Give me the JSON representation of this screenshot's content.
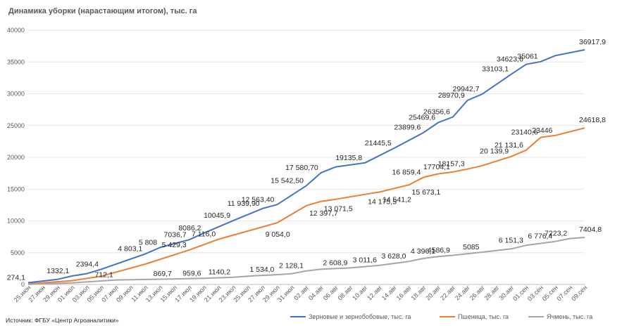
{
  "chart_data": {
    "type": "line",
    "title": "Динамика уборки (нарастающим итогом), тыс. га",
    "source": "Источник: ФГБУ «Центр Агроаналитики»",
    "ylim": [
      0,
      40000
    ],
    "yticks": [
      0,
      5000,
      10000,
      15000,
      20000,
      25000,
      30000,
      35000,
      40000
    ],
    "grid": true,
    "legend_position": "bottom",
    "x_labels": [
      "25.июн",
      "27.июн",
      "29.июн",
      "01.июл",
      "03.июл",
      "05.июл",
      "07.июл",
      "09.июл",
      "11.июл",
      "13.июл",
      "15.июл",
      "17.июл",
      "19.июл",
      "21.июл",
      "23.июл",
      "25.июл",
      "27.июл",
      "29.июл",
      "31.июл",
      "02.авг",
      "04.авг",
      "06.авг",
      "08.авг",
      "10.авг",
      "12.авг",
      "14.авг",
      "16.авг",
      "18.авг",
      "20.авг",
      "22.авг",
      "24.авг",
      "26.авг",
      "28.авг",
      "30.авг",
      "01.сен",
      "03.сен",
      "05.сен",
      "07.сен",
      "09.сен"
    ],
    "x_count": 77,
    "series": [
      {
        "name": "Зерновые и зернобобовые, тыс. га",
        "color": "#4472C4",
        "points": [
          [
            0,
            274.1
          ],
          [
            4,
            800
          ],
          [
            6,
            1332.1
          ],
          [
            8,
            1700
          ],
          [
            10,
            2394.4
          ],
          [
            16,
            4803.1
          ],
          [
            18,
            5808
          ],
          [
            22,
            7036.7
          ],
          [
            24,
            8086.2
          ],
          [
            28,
            10045.9
          ],
          [
            32,
            11939.9
          ],
          [
            34,
            12563.4
          ],
          [
            38,
            15542.5
          ],
          [
            40,
            17580.7
          ],
          [
            42,
            18500
          ],
          [
            46,
            19135.8
          ],
          [
            50,
            21445.5
          ],
          [
            54,
            23899.6
          ],
          [
            56,
            25469.6
          ],
          [
            58,
            26356.6
          ],
          [
            60,
            28970.9
          ],
          [
            62,
            29942.7
          ],
          [
            66,
            33103.1
          ],
          [
            68,
            34623.6
          ],
          [
            70,
            35061
          ],
          [
            72,
            36000
          ],
          [
            76,
            36917.9
          ]
        ],
        "labels": [
          {
            "x": 0,
            "y": 274.1,
            "text": "274,1"
          },
          {
            "x": 6,
            "y": 1332.1,
            "text": "1332,1"
          },
          {
            "x": 10,
            "y": 2394.4,
            "text": "2394,4"
          },
          {
            "x": 16,
            "y": 4803.1,
            "text": "4 803,1"
          },
          {
            "x": 18,
            "y": 5808,
            "text": "5 808"
          },
          {
            "x": 22,
            "y": 7036.7,
            "text": "7036,7"
          },
          {
            "x": 24,
            "y": 8086.2,
            "text": "8086,2"
          },
          {
            "x": 28,
            "y": 10045.9,
            "text": "10045,9"
          },
          {
            "x": 32,
            "y": 11939.9,
            "text": "11 939,90"
          },
          {
            "x": 34,
            "y": 12563.4,
            "text": "12 563,40"
          },
          {
            "x": 38,
            "y": 15542.5,
            "text": "15 542,50"
          },
          {
            "x": 40,
            "y": 17580.7,
            "text": "17 580,70"
          },
          {
            "x": 46,
            "y": 19135.8,
            "text": "19135,8"
          },
          {
            "x": 50,
            "y": 21445.5,
            "text": "21445,5"
          },
          {
            "x": 54,
            "y": 23899.6,
            "text": "23899,6"
          },
          {
            "x": 56,
            "y": 25469.6,
            "text": "25469,6"
          },
          {
            "x": 58,
            "y": 26356.6,
            "text": "26356,6"
          },
          {
            "x": 60,
            "y": 28970.9,
            "text": "28970,9"
          },
          {
            "x": 62,
            "y": 29942.7,
            "text": "29942,7"
          },
          {
            "x": 66,
            "y": 33103.1,
            "text": "33103,1"
          },
          {
            "x": 68,
            "y": 34623.6,
            "text": "34623,6"
          },
          {
            "x": 70,
            "y": 35061,
            "text": "35061"
          },
          {
            "x": 76,
            "y": 36917.9,
            "text": "36917,9"
          }
        ]
      },
      {
        "name": "Пшеница, тыс. га",
        "color": "#ED7D31",
        "points": [
          [
            0,
            100
          ],
          [
            6,
            600
          ],
          [
            10,
            1300
          ],
          [
            16,
            3200
          ],
          [
            22,
            5429.3
          ],
          [
            26,
            7116
          ],
          [
            32,
            9054
          ],
          [
            34,
            9700
          ],
          [
            38,
            12397.7
          ],
          [
            40,
            13071.5
          ],
          [
            42,
            13400
          ],
          [
            46,
            14175.5
          ],
          [
            48,
            14541.2
          ],
          [
            52,
            15673.1
          ],
          [
            54,
            16859.4
          ],
          [
            56,
            17400
          ],
          [
            58,
            17704.1
          ],
          [
            60,
            18157.3
          ],
          [
            62,
            18700
          ],
          [
            66,
            20139.9
          ],
          [
            68,
            21131.6
          ],
          [
            70,
            23140.6
          ],
          [
            72,
            23446
          ],
          [
            76,
            24618.8
          ]
        ],
        "labels": [
          {
            "x": 22,
            "y": 5429.3,
            "text": "5 429,3"
          },
          {
            "x": 26,
            "y": 7116,
            "text": "7 116,0"
          },
          {
            "x": 32,
            "y": 9054,
            "text": "9 054,0"
          },
          {
            "x": 38,
            "y": 12397.7,
            "text": "12 397,7"
          },
          {
            "x": 40,
            "y": 13071.5,
            "text": "13 071,5"
          },
          {
            "x": 46,
            "y": 14175.5,
            "text": "14 175,5"
          },
          {
            "x": 48,
            "y": 14541.2,
            "text": "14 541,2"
          },
          {
            "x": 52,
            "y": 15673.1,
            "text": "15 673,1"
          },
          {
            "x": 54,
            "y": 16859.4,
            "text": "16 859,4"
          },
          {
            "x": 58,
            "y": 17704.1,
            "text": "17704,1"
          },
          {
            "x": 60,
            "y": 18157.3,
            "text": "18157,3"
          },
          {
            "x": 66,
            "y": 20139.9,
            "text": "20 139,9"
          },
          {
            "x": 68,
            "y": 21131.6,
            "text": "21 131,6"
          },
          {
            "x": 70,
            "y": 23140.6,
            "text": "23140,6"
          },
          {
            "x": 72,
            "y": 23446,
            "text": "23446"
          },
          {
            "x": 76,
            "y": 24618.8,
            "text": "24618,8"
          }
        ]
      },
      {
        "name": "Ячмень, тыс. га",
        "color": "#A5A5A5",
        "points": [
          [
            0,
            30
          ],
          [
            6,
            250
          ],
          [
            12,
            712.1
          ],
          [
            20,
            869.7
          ],
          [
            24,
            959.6
          ],
          [
            28,
            1140.2
          ],
          [
            30,
            1300
          ],
          [
            34,
            1534
          ],
          [
            36,
            1700
          ],
          [
            38,
            2128.1
          ],
          [
            40,
            2400
          ],
          [
            44,
            2608.9
          ],
          [
            48,
            3011.6
          ],
          [
            52,
            3628
          ],
          [
            54,
            4100
          ],
          [
            56,
            4396.1
          ],
          [
            58,
            4586.9
          ],
          [
            62,
            5085
          ],
          [
            66,
            5600
          ],
          [
            68,
            6151.3
          ],
          [
            72,
            6776.4
          ],
          [
            74,
            7223.2
          ],
          [
            76,
            7404.8
          ]
        ],
        "labels": [
          {
            "x": 12,
            "y": 712.1,
            "text": "712,1"
          },
          {
            "x": 20,
            "y": 869.7,
            "text": "869,7"
          },
          {
            "x": 24,
            "y": 959.6,
            "text": "959,6"
          },
          {
            "x": 28,
            "y": 1140.2,
            "text": "1140,2"
          },
          {
            "x": 34,
            "y": 1534,
            "text": "1 534,0"
          },
          {
            "x": 38,
            "y": 2128.1,
            "text": "2 128,1"
          },
          {
            "x": 44,
            "y": 2608.9,
            "text": "2 608,9"
          },
          {
            "x": 48,
            "y": 3011.6,
            "text": "3 011,6"
          },
          {
            "x": 52,
            "y": 3628,
            "text": "3 628,0"
          },
          {
            "x": 56,
            "y": 4396.1,
            "text": "4 396,1"
          },
          {
            "x": 58,
            "y": 4586.9,
            "text": "4586,9"
          },
          {
            "x": 62,
            "y": 5085,
            "text": "5085"
          },
          {
            "x": 68,
            "y": 6151.3,
            "text": "6 151,3"
          },
          {
            "x": 72,
            "y": 6776.4,
            "text": "6 776,4"
          },
          {
            "x": 74,
            "y": 7223.2,
            "text": "7223,2"
          },
          {
            "x": 76,
            "y": 7404.8,
            "text": "7404,8"
          }
        ]
      }
    ]
  }
}
